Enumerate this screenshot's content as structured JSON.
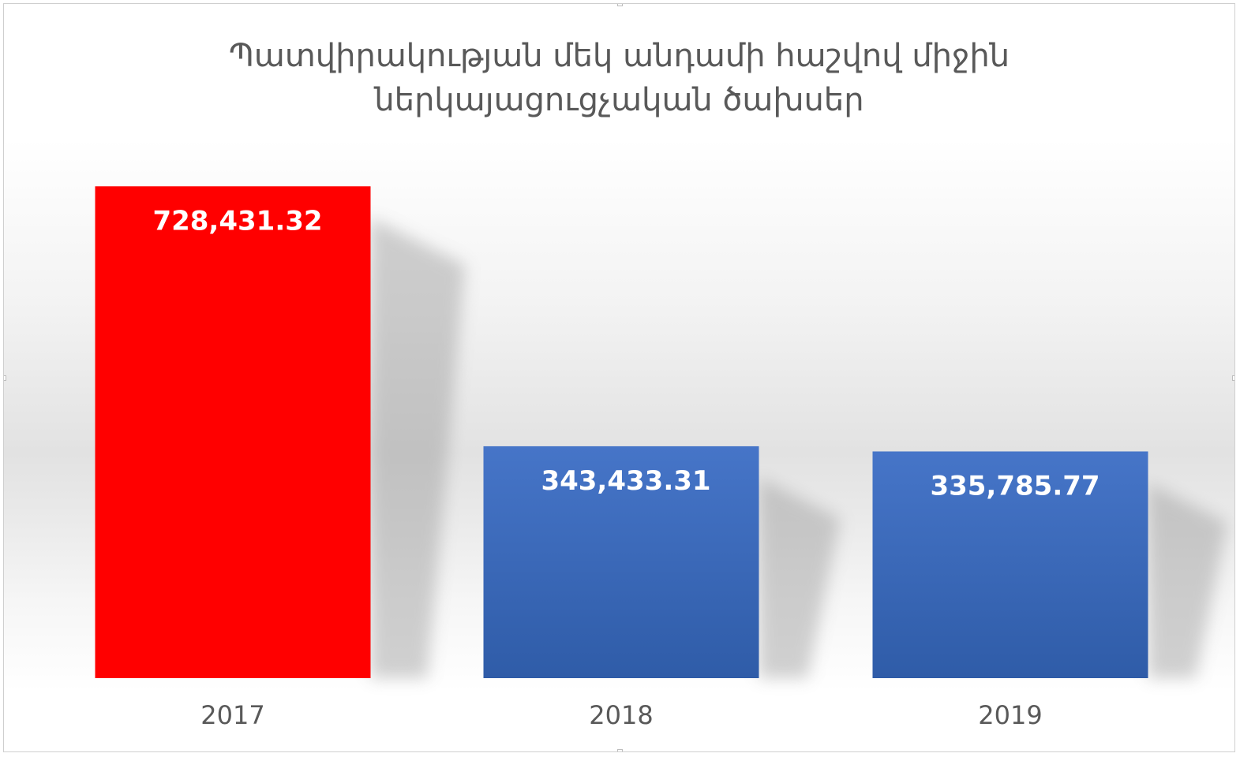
{
  "chart_data": {
    "type": "bar",
    "title": [
      "Պատվիրակության մեկ անդամի հաշվով միջին",
      "ներկայացուցչական ծախսեր"
    ],
    "categories": [
      "2017",
      "2018",
      "2019"
    ],
    "values": [
      728431.32,
      343433.31,
      335785.77
    ],
    "data_labels": [
      "728,431.32",
      "343,433.31",
      "335,785.77"
    ],
    "bar_colors": [
      "#ff0000",
      "#3f6fc0",
      "#3f6fc0"
    ],
    "label_color": "#ffffff",
    "text_color": "#595959",
    "xlabel": "",
    "ylabel": "",
    "ylim": [
      0,
      800000
    ],
    "grid": false,
    "legend": "none"
  }
}
